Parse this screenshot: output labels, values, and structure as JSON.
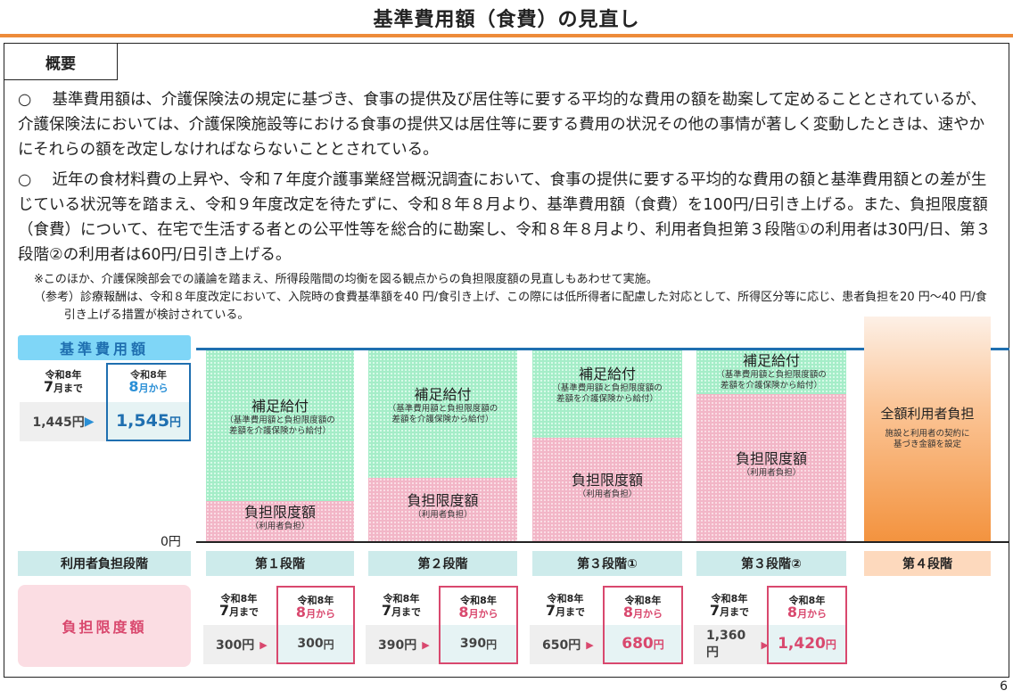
{
  "title": "基準費用額（食費）の見直し",
  "tab": "概要",
  "paragraphs": [
    {
      "marker": "○",
      "text": "基準費用額は、介護保険法の規定に基づき、食事の提供及び居住等に要する平均的な費用の額を勘案して定めることとされているが、介護保険法においては、介護保険施設等における食事の提供又は居住等に要する費用の状況その他の事情が著しく変動したときは、速やかにそれらの額を改定しなければならないこととされている。"
    },
    {
      "marker": "○",
      "text": "近年の食材料費の上昇や、令和７年度介護事業経営概況調査において、食事の提供に要する平均的な費用の額と基準費用額との差が生じている状況等を踏まえ、令和９年度改定を待たずに、令和８年８月より、基準費用額（食費）を100円/日引き上げる。また、負担限度額（食費）について、在宅で生活する者との公平性等を総合的に勘案し、令和８年８月より、利用者負担第３段階①の利用者は30円/日、第３段階②の利用者は60円/日引き上げる。"
    }
  ],
  "notes": [
    "※このほか、介護保険部会での議論を踏まえ、所得段階間の均衡を図る観点からの負担限度額の見直しもあわせて実施。",
    "（参考）診療報酬は、令和８年度改定において、入院時の食費基準額を40 円/食引き上げ、この際には低所得者に配慮した対応として、所得区分等に応じ、患者負担を20 円～40 円/食引き上げる措置が検討されている。"
  ],
  "base_cost": {
    "label": "基準費用額",
    "before_year": "令和8年",
    "before_month": "7",
    "before_suffix": "月まで",
    "after_year": "令和8年",
    "after_month": "8",
    "after_suffix": "月から",
    "before_value": "1,445円",
    "after_value": "1,545",
    "after_unit": "円",
    "arrow": "▶"
  },
  "zero_label": "0円",
  "subsidy": {
    "title": "補足給付",
    "desc1": "（基準費用額と負担限度額の",
    "desc2": "差額を介護保険から給付）"
  },
  "limit": {
    "title": "負担限度額",
    "desc": "（利用者負担）"
  },
  "full": {
    "title": "全額利用者負担",
    "desc1": "施設と利用者の契約に",
    "desc2": "基づき金額を設定"
  },
  "stage_row_label": "利用者負担段階",
  "limit_row_label": "負担限度額",
  "stages": [
    {
      "name": "第１段階",
      "before": "300円",
      "after": "300",
      "limit_share": 0.21
    },
    {
      "name": "第２段階",
      "before": "390円",
      "after": "390",
      "limit_share": 0.33
    },
    {
      "name": "第３段階①",
      "before": "650円",
      "after": "680",
      "limit_share": 0.54
    },
    {
      "name": "第３段階②",
      "before": "1,360円",
      "after": "1,420",
      "limit_share": 0.77
    },
    {
      "name": "第４段階"
    }
  ],
  "date_labels": {
    "year": "令和8年",
    "m7": "7",
    "to": "月まで",
    "m8": "8",
    "from": "月から",
    "unit": "円"
  },
  "page_number": "6",
  "colors": {
    "accent_orange": "#ed8b3a",
    "blue": "#1f6fb0",
    "pink": "#d9486e",
    "green": "#a5edc8"
  }
}
